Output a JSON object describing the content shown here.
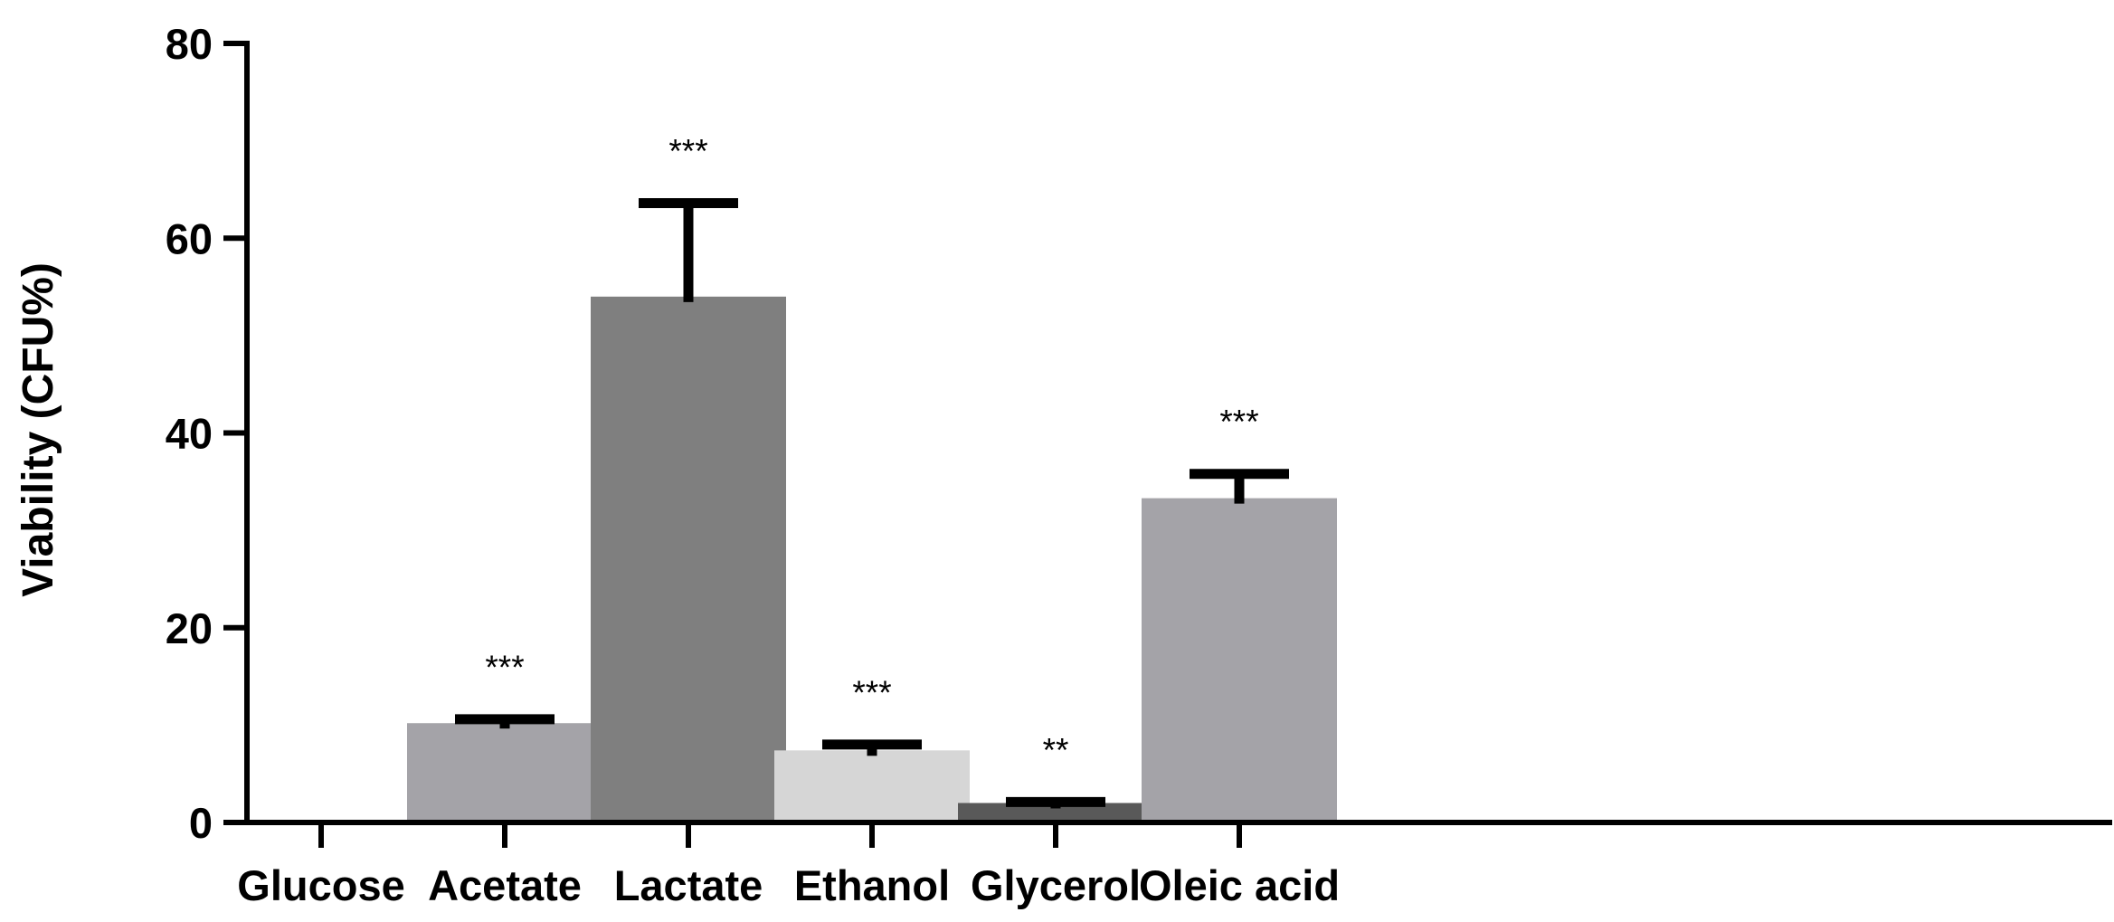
{
  "chart_data": {
    "type": "bar",
    "title": "",
    "xlabel": "",
    "ylabel": "Viability (CFU%)",
    "ylim": [
      0,
      80
    ],
    "yticks": [
      0,
      20,
      40,
      60,
      80
    ],
    "grid": false,
    "categories": [
      "Glucose",
      "Acetate",
      "Lactate",
      "Ethanol",
      "Glycerol",
      "Oleic acid"
    ],
    "values": [
      0,
      10.2,
      54,
      7.4,
      2.0,
      33.3
    ],
    "error_upper": [
      0,
      0.4,
      9.6,
      0.6,
      0.1,
      2.5
    ],
    "significance": [
      "",
      "***",
      "***",
      "***",
      "**",
      "***"
    ],
    "colors": [
      "#a4a3a8",
      "#a4a3a8",
      "#7f7f7f",
      "#d6d6d6",
      "#595959",
      "#a4a3a8"
    ]
  }
}
